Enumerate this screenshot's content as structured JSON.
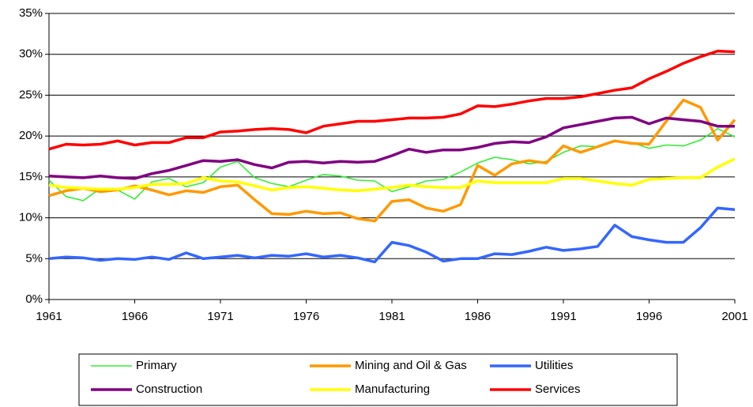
{
  "chart_data": {
    "type": "line",
    "x": [
      1961,
      1962,
      1963,
      1964,
      1965,
      1966,
      1967,
      1968,
      1969,
      1970,
      1971,
      1972,
      1973,
      1974,
      1975,
      1976,
      1977,
      1978,
      1979,
      1980,
      1981,
      1982,
      1983,
      1984,
      1985,
      1986,
      1987,
      1988,
      1989,
      1990,
      1991,
      1992,
      1993,
      1994,
      1995,
      1996,
      1997,
      1998,
      1999,
      2000,
      2001
    ],
    "xlim": [
      1961,
      2001
    ],
    "xticks": [
      1961,
      1966,
      1971,
      1976,
      1981,
      1986,
      1991,
      1996,
      2001
    ],
    "ylim": [
      0,
      35
    ],
    "yticks": [
      {
        "value": 0,
        "label": "0%"
      },
      {
        "value": 5,
        "label": "5%"
      },
      {
        "value": 10,
        "label": "10%"
      },
      {
        "value": 15,
        "label": "15%"
      },
      {
        "value": 20,
        "label": "20%"
      },
      {
        "value": 25,
        "label": "25%"
      },
      {
        "value": 30,
        "label": "30%"
      },
      {
        "value": 35,
        "label": "35%"
      }
    ],
    "grid": true,
    "legend": "bottom",
    "series": [
      {
        "name": "Primary",
        "color": "#33ee33",
        "values": [
          14.6,
          12.6,
          12.1,
          13.6,
          13.4,
          12.3,
          14.4,
          14.8,
          13.8,
          14.3,
          16.2,
          16.9,
          14.9,
          14.2,
          13.8,
          14.6,
          15.3,
          15.1,
          14.6,
          14.5,
          13.2,
          13.8,
          14.5,
          14.7,
          15.6,
          16.7,
          17.4,
          17.1,
          16.6,
          16.9,
          18.0,
          18.8,
          18.7,
          19.4,
          19.2,
          18.5,
          18.9,
          18.8,
          19.5,
          20.9,
          19.9
        ]
      },
      {
        "name": "Mining and Oil & Gas",
        "color": "#ff9900",
        "values": [
          12.7,
          13.3,
          13.6,
          13.2,
          13.4,
          13.9,
          13.4,
          12.8,
          13.3,
          13.1,
          13.8,
          14.0,
          12.2,
          10.5,
          10.4,
          10.8,
          10.5,
          10.6,
          9.9,
          9.6,
          12.0,
          12.2,
          11.2,
          10.8,
          11.6,
          16.4,
          15.2,
          16.6,
          17.0,
          16.7,
          18.8,
          18.0,
          18.7,
          19.4,
          19.1,
          19.0,
          21.8,
          24.4,
          23.5,
          19.5,
          22.0
        ]
      },
      {
        "name": "Utilities",
        "color": "#3366ff",
        "values": [
          5.0,
          5.2,
          5.1,
          4.8,
          5.0,
          4.9,
          5.2,
          4.9,
          5.7,
          5.0,
          5.2,
          5.4,
          5.1,
          5.4,
          5.3,
          5.6,
          5.2,
          5.4,
          5.1,
          4.6,
          7.0,
          6.6,
          5.8,
          4.7,
          5.0,
          5.0,
          5.6,
          5.5,
          5.9,
          6.4,
          6.0,
          6.2,
          6.5,
          9.1,
          7.7,
          7.3,
          7.0,
          7.0,
          8.8,
          11.2,
          11.0
        ]
      },
      {
        "name": "Construction",
        "color": "#800080",
        "values": [
          15.1,
          15.0,
          14.9,
          15.1,
          14.9,
          14.8,
          15.4,
          15.8,
          16.4,
          17.0,
          16.9,
          17.1,
          16.5,
          16.1,
          16.8,
          16.9,
          16.7,
          16.9,
          16.8,
          16.9,
          17.6,
          18.4,
          18.0,
          18.3,
          18.3,
          18.6,
          19.1,
          19.3,
          19.2,
          19.9,
          21.0,
          21.4,
          21.8,
          22.2,
          22.3,
          21.5,
          22.2,
          22.0,
          21.8,
          21.2,
          21.2
        ]
      },
      {
        "name": "Manufacturing",
        "color": "#ffff00",
        "values": [
          14.0,
          13.7,
          13.6,
          13.5,
          13.5,
          13.7,
          14.1,
          14.1,
          14.2,
          14.9,
          14.5,
          14.4,
          13.9,
          13.4,
          13.7,
          13.8,
          13.6,
          13.4,
          13.3,
          13.5,
          13.7,
          14.0,
          13.8,
          13.7,
          13.7,
          14.5,
          14.3,
          14.3,
          14.3,
          14.3,
          14.8,
          14.8,
          14.5,
          14.2,
          14.0,
          14.7,
          14.8,
          14.9,
          14.9,
          16.2,
          17.2
        ]
      },
      {
        "name": "Services",
        "color": "#ff0000",
        "values": [
          18.4,
          19.0,
          18.9,
          19.0,
          19.4,
          18.9,
          19.2,
          19.2,
          19.8,
          19.8,
          20.5,
          20.6,
          20.8,
          20.9,
          20.8,
          20.4,
          21.2,
          21.5,
          21.8,
          21.8,
          22.0,
          22.2,
          22.2,
          22.3,
          22.7,
          23.7,
          23.6,
          23.9,
          24.3,
          24.6,
          24.6,
          24.8,
          25.2,
          25.6,
          25.9,
          27.0,
          27.9,
          28.9,
          29.7,
          30.4,
          30.3
        ]
      }
    ]
  }
}
